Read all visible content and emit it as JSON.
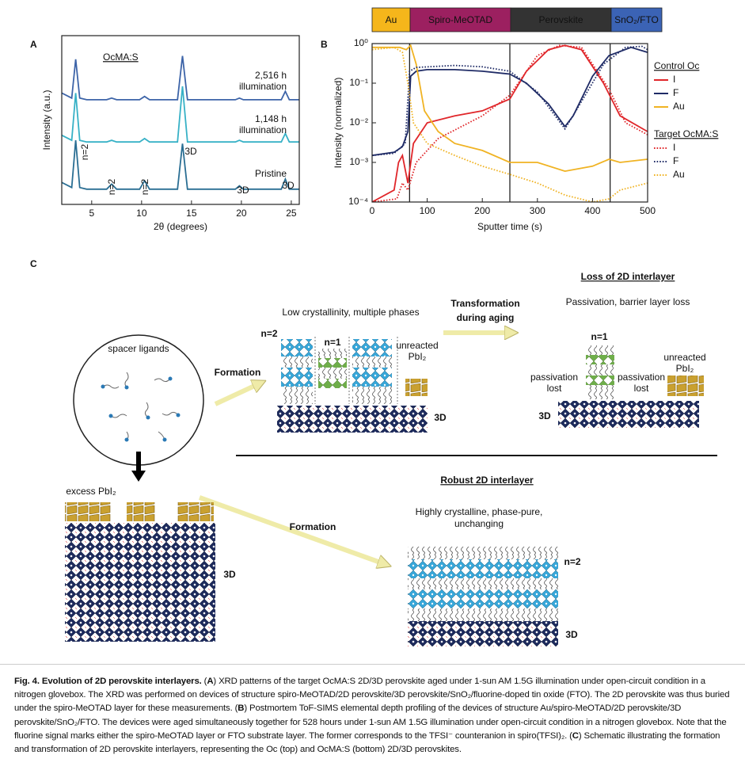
{
  "chart_data": [
    {
      "type": "line",
      "panel": "A",
      "x_label": "2θ (degrees)",
      "y_label": "Intensity (a.u.)",
      "xlim": [
        2,
        25.8
      ],
      "xticks": [
        5,
        10,
        15,
        20,
        25
      ],
      "ylim": [
        0,
        10
      ],
      "x": [
        2,
        3.0,
        3.4,
        3.8,
        4.5,
        6.5,
        7,
        7.5,
        9.8,
        10.3,
        10.8,
        13.6,
        14.1,
        14.6,
        19.4,
        19.8,
        20.2,
        24.0,
        24.4,
        24.8,
        25.8
      ],
      "series": [
        {
          "color": "#3d64a8",
          "values": [
            6.6,
            6.3,
            8.6,
            6.3,
            6.2,
            6.2,
            6.3,
            6.2,
            6.2,
            6.4,
            6.2,
            6.2,
            8.8,
            6.2,
            6.2,
            6.3,
            6.2,
            6.2,
            6.7,
            6.2,
            6.2
          ]
        },
        {
          "color": "#37b1c6",
          "values": [
            4.1,
            3.8,
            6.6,
            3.8,
            3.7,
            3.7,
            3.8,
            3.7,
            3.7,
            3.9,
            3.7,
            3.7,
            7.0,
            3.7,
            3.7,
            3.8,
            3.7,
            3.7,
            4.2,
            3.7,
            3.7
          ]
        },
        {
          "color": "#2a6e93",
          "values": [
            1.3,
            1.0,
            3.8,
            1.0,
            0.9,
            0.9,
            1.2,
            0.9,
            0.9,
            1.4,
            0.9,
            0.9,
            3.6,
            0.9,
            0.9,
            1.1,
            0.9,
            0.9,
            1.5,
            0.9,
            0.9
          ]
        }
      ],
      "annotations": [
        "OcMA:S",
        "2,516 h",
        "illumination",
        "1,148 h",
        "illumination",
        "Pristine",
        "n=2",
        "n=2",
        "n=2",
        "3D",
        "3D",
        "3D"
      ]
    },
    {
      "type": "line",
      "panel": "B",
      "x_label": "Sputter time (s)",
      "y_label": "Intensity (normalized)",
      "log_y": true,
      "xlim": [
        0,
        500
      ],
      "xticks": [
        0,
        100,
        200,
        300,
        400,
        500
      ],
      "ylim": [
        0.0001,
        1
      ],
      "yticks": [
        {
          "value": 0.0001,
          "label": "10⁻⁴"
        },
        {
          "value": 0.001,
          "label": "10⁻³"
        },
        {
          "value": 0.01,
          "label": "10⁻²"
        },
        {
          "value": 0.1,
          "label": "10⁻¹"
        },
        {
          "value": 1,
          "label": "10⁰"
        }
      ],
      "layers": [
        {
          "name": "Au",
          "color": "#f5b61b"
        },
        {
          "name": "Spiro-MeOTAD",
          "color": "#9c2060"
        },
        {
          "name": "Perovskite",
          "color": "#333333"
        },
        {
          "name": "SnO₂/FTO",
          "color": "#3b63b5"
        }
      ],
      "layer_boundaries": [
        68,
        250,
        432
      ],
      "legend_groups": [
        "Control Oc",
        "Target OcMA:S"
      ],
      "series": [
        {
          "name": "I",
          "color": "#e0262a",
          "dash": "solid",
          "x": [
            0,
            40,
            48,
            55,
            65,
            75,
            100,
            150,
            200,
            250,
            280,
            320,
            350,
            380,
            420,
            450,
            500
          ],
          "values": [
            0.0001,
            0.0002,
            0.001,
            0.0015,
            0.0003,
            0.003,
            0.01,
            0.015,
            0.02,
            0.04,
            0.2,
            0.7,
            0.9,
            0.7,
            0.1,
            0.015,
            0.006
          ]
        },
        {
          "name": "F",
          "color": "#1f2b66",
          "dash": "solid",
          "x": [
            0,
            40,
            55,
            65,
            70,
            80,
            100,
            150,
            200,
            250,
            280,
            320,
            350,
            365,
            400,
            430,
            470,
            500
          ],
          "values": [
            0.0015,
            0.0018,
            0.0025,
            0.006,
            0.15,
            0.2,
            0.22,
            0.22,
            0.2,
            0.17,
            0.1,
            0.03,
            0.008,
            0.015,
            0.15,
            0.5,
            0.8,
            0.6
          ]
        },
        {
          "name": "Au",
          "color": "#f0b323",
          "dash": "solid",
          "x": [
            0,
            50,
            62,
            70,
            80,
            95,
            120,
            150,
            200,
            250,
            300,
            350,
            400,
            430,
            450,
            500
          ],
          "values": [
            0.8,
            0.8,
            0.7,
            0.9,
            0.3,
            0.02,
            0.006,
            0.003,
            0.002,
            0.001,
            0.001,
            0.0006,
            0.0008,
            0.0012,
            0.001,
            0.0012
          ]
        },
        {
          "name": "I",
          "color": "#e0262a",
          "dash": "dotted",
          "x": [
            0,
            45,
            55,
            65,
            80,
            120,
            200,
            250,
            300,
            340,
            380,
            430,
            460,
            500
          ],
          "values": [
            0.0001,
            0.00012,
            0.0003,
            0.0002,
            0.001,
            0.004,
            0.015,
            0.05,
            0.5,
            0.9,
            0.8,
            0.07,
            0.01,
            0.005
          ]
        },
        {
          "name": "F",
          "color": "#1f2b66",
          "dash": "dotted",
          "x": [
            0,
            40,
            60,
            68,
            80,
            150,
            200,
            250,
            300,
            350,
            370,
            420,
            460,
            490,
            500
          ],
          "values": [
            0.0015,
            0.0017,
            0.003,
            0.2,
            0.25,
            0.28,
            0.26,
            0.2,
            0.06,
            0.007,
            0.02,
            0.3,
            0.8,
            0.85,
            0.7
          ]
        },
        {
          "name": "Au",
          "color": "#f0b323",
          "dash": "dotted",
          "x": [
            0,
            40,
            55,
            65,
            75,
            100,
            150,
            200,
            250,
            300,
            350,
            400,
            430,
            450,
            500
          ],
          "values": [
            0.7,
            0.8,
            0.6,
            0.1,
            0.01,
            0.003,
            0.0015,
            0.0008,
            0.0005,
            0.0003,
            0.00015,
            0.0001,
            0.00012,
            0.0002,
            0.0003
          ]
        }
      ]
    }
  ],
  "schematic": {
    "panel": "C",
    "labels": [
      "Loss of 2D interlayer",
      "Passivation, barrier layer loss",
      "Low crystallinity, multiple phases",
      "Transformation",
      "during aging",
      "spacer ligands",
      "Formation",
      "n=2",
      "n=1",
      "unreacted",
      "PbI₂",
      "3D",
      "n=1",
      "passivation",
      "lost",
      "passivation",
      "lost",
      "unreacted",
      "PbI₂",
      "3D",
      "excess PbI₂",
      "3D",
      "Formation",
      "Robust 2D interlayer",
      "Highly crystalline, phase-pure,",
      "unchanging",
      "n=2",
      "3D"
    ]
  },
  "caption": {
    "parts": [
      "Fig. 4. Evolution of 2D perovskite interlayers.",
      " (",
      "A",
      ") XRD patterns of the target OcMA:S 2D/3D perovskite aged under 1-sun AM 1.5G illumination under open-circuit condition in a nitrogen glovebox. The XRD was performed on devices of structure spiro-MeOTAD/2D perovskite/3D perovskite/SnO₂/fluorine-doped tin oxide (FTO). The 2D perovskite was thus buried under the spiro-MeOTAD layer for these measurements. (",
      "B",
      ") Postmortem ToF-SIMS elemental depth profiling of the devices of structure Au/spiro-MeOTAD/2D perovskite/3D perovskite/SnO₂/FTO. The devices were aged simultaneously together for 528 hours under 1-sun AM 1.5G illumination under open-circuit condition in a nitrogen glovebox. Note that the fluorine signal marks either the spiro-MeOTAD layer or FTO substrate layer. The former corresponds to the TFSI⁻ counteranion in spiro(TFSI)₂. (",
      "C",
      ") Schematic illustrating the formation and transformation of 2D perovskite interlayers, representing the Oc (top) and OcMA:S (bottom) 2D/3D perovskites."
    ]
  }
}
